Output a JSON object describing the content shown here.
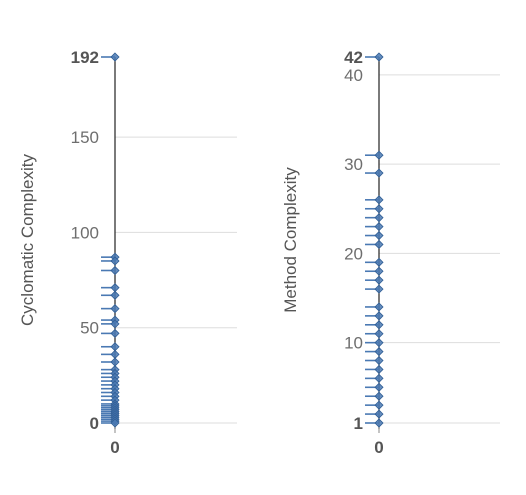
{
  "chart_data": [
    {
      "type": "scatter",
      "ylabel": "Cyclomatic Complexity",
      "xlabel": "",
      "x_tick_labels": [
        "0"
      ],
      "y_ticks": [
        50,
        100,
        150
      ],
      "y_tick_labels": [
        "50",
        "100",
        "150"
      ],
      "y_min_label": "0",
      "y_max_label": "192",
      "ylim": [
        0,
        192
      ],
      "grid": true,
      "accent_color": "#4a79b3",
      "values": [
        192,
        87,
        85,
        80,
        71,
        67,
        60,
        54,
        52,
        47,
        40,
        36,
        32,
        28,
        26,
        24,
        22,
        20,
        18,
        16,
        14,
        12,
        10,
        9,
        8,
        7,
        6,
        5,
        4,
        3,
        2,
        1,
        0
      ]
    },
    {
      "type": "scatter",
      "ylabel": "Method Complexity",
      "xlabel": "",
      "x_tick_labels": [
        "0"
      ],
      "y_ticks": [
        10,
        20,
        30,
        40
      ],
      "y_tick_labels": [
        "10",
        "20",
        "30",
        "40"
      ],
      "y_min_label": "1",
      "y_max_label": "42",
      "ylim": [
        1,
        42
      ],
      "grid": true,
      "accent_color": "#4a79b3",
      "values": [
        42,
        31,
        29,
        26,
        25,
        24,
        23,
        22,
        21,
        19,
        18,
        17,
        16,
        14,
        13,
        12,
        11,
        10,
        9,
        8,
        7,
        6,
        5,
        4,
        3,
        2,
        1
      ]
    }
  ]
}
